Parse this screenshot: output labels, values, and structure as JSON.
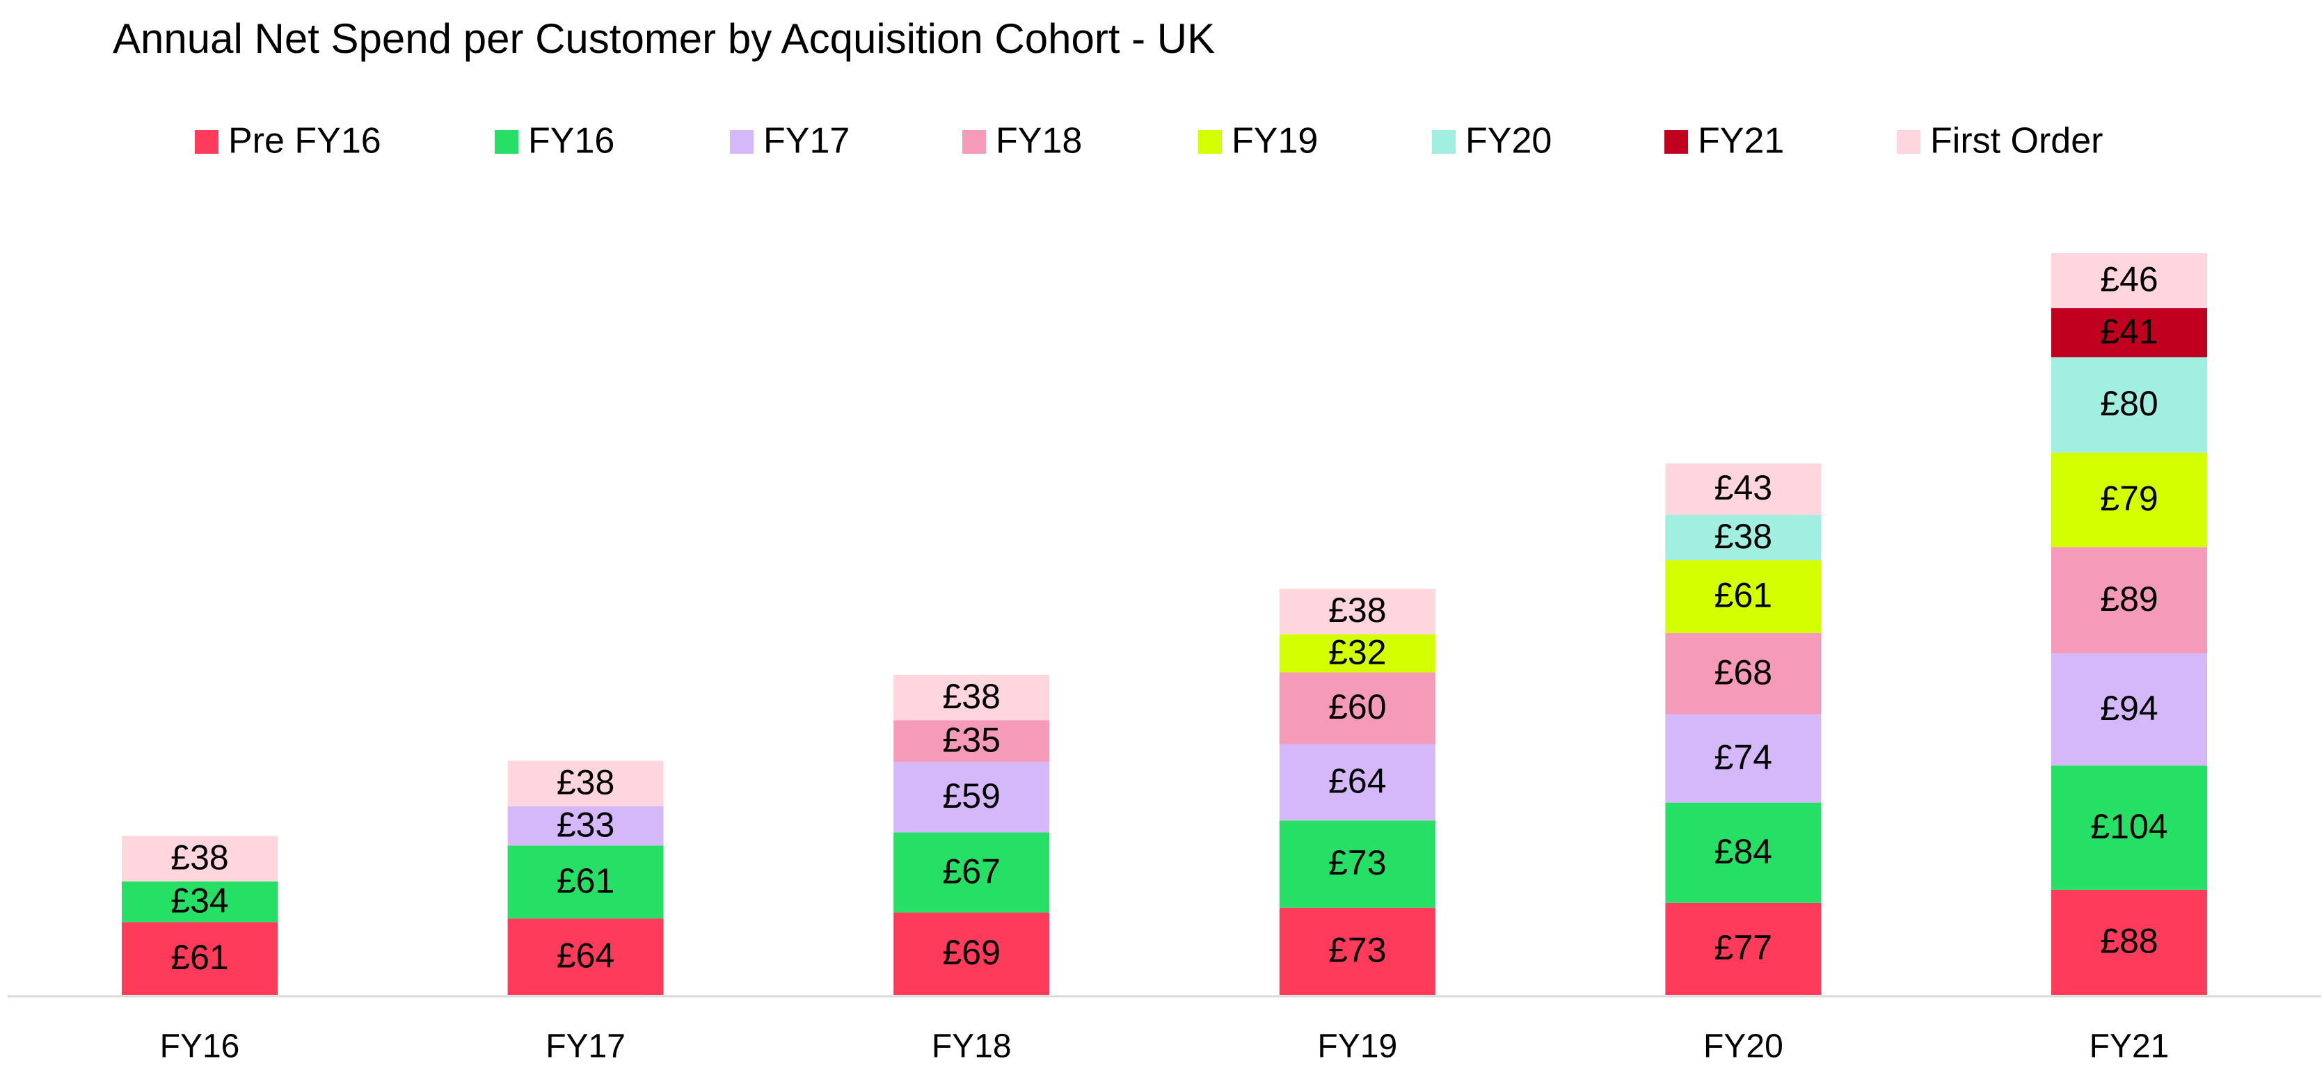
{
  "chart_data": {
    "type": "stacked_bar",
    "title": "Annual Net Spend per Customer by Acquisition Cohort - UK",
    "categories": [
      "FY16",
      "FY17",
      "FY18",
      "FY19",
      "FY20",
      "FY21"
    ],
    "legend": "top",
    "series": [
      {
        "name": "Pre FY16",
        "color": "#ff3b5c",
        "values": [
          61,
          64,
          69,
          73,
          77,
          88
        ],
        "value_labels": [
          "£61",
          "£64",
          "£69",
          "£73",
          "£77",
          "£88"
        ]
      },
      {
        "name": "FY16",
        "color": "#26e066",
        "values": [
          34,
          61,
          67,
          73,
          84,
          104
        ],
        "value_labels": [
          "£34",
          "£61",
          "£67",
          "£73",
          "£84",
          "£104"
        ]
      },
      {
        "name": "FY17",
        "color": "#d4b8fa",
        "values": [
          null,
          33,
          59,
          64,
          74,
          94
        ],
        "value_labels": [
          null,
          "£33",
          "£59",
          "£64",
          "£74",
          "£94"
        ]
      },
      {
        "name": "FY18",
        "color": "#f59ab8",
        "values": [
          null,
          null,
          35,
          60,
          68,
          89
        ],
        "value_labels": [
          null,
          null,
          "£35",
          "£60",
          "£68",
          "£89"
        ]
      },
      {
        "name": "FY19",
        "color": "#d4ff00",
        "values": [
          null,
          null,
          null,
          32,
          61,
          79
        ],
        "value_labels": [
          null,
          null,
          null,
          "£32",
          "£61",
          "£79"
        ]
      },
      {
        "name": "FY20",
        "color": "#a0efe0",
        "values": [
          null,
          null,
          null,
          null,
          38,
          80
        ],
        "value_labels": [
          null,
          null,
          null,
          null,
          "£38",
          "£80"
        ]
      },
      {
        "name": "FY21",
        "color": "#c0001e",
        "values": [
          null,
          null,
          null,
          null,
          null,
          41
        ],
        "value_labels": [
          null,
          null,
          null,
          null,
          null,
          "£41"
        ]
      },
      {
        "name": "First Order",
        "color": "#ffd6de",
        "values": [
          38,
          38,
          38,
          38,
          43,
          46
        ],
        "value_labels": [
          "£38",
          "£38",
          "£38",
          "£38",
          "£43",
          "£46"
        ]
      }
    ]
  }
}
